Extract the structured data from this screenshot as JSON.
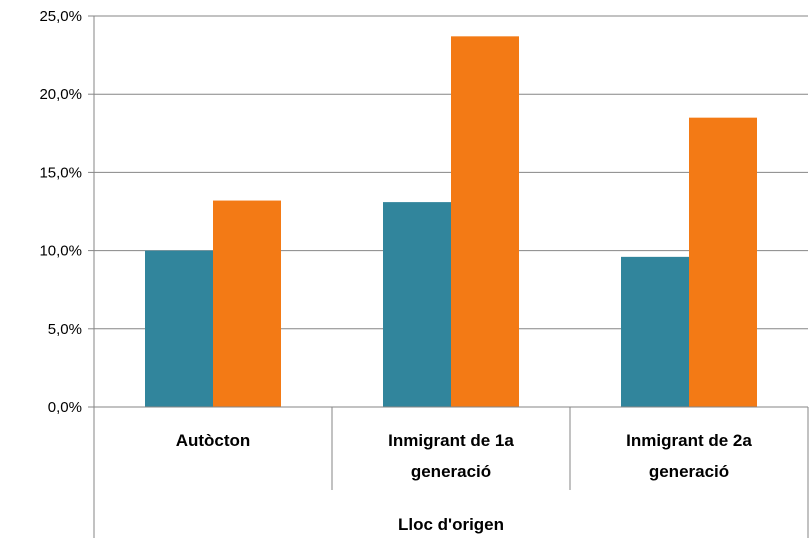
{
  "chart_data": {
    "type": "bar",
    "categories": [
      [
        "Autòcton"
      ],
      [
        "Inmigrant de 1a",
        "generació"
      ],
      [
        "Inmigrant de 2a",
        "generació"
      ]
    ],
    "series": [
      {
        "color": "#31859c",
        "values": [
          10.0,
          13.1,
          9.6
        ]
      },
      {
        "color": "#f37a15",
        "values": [
          13.2,
          23.7,
          18.5
        ]
      }
    ],
    "yticks": [
      "0,0%",
      "5,0%",
      "10,0%",
      "15,0%",
      "20,0%",
      "25,0%"
    ],
    "ylim": [
      0,
      25
    ],
    "xlabel": "Lloc d'origen",
    "ylabel": "",
    "title": "",
    "grid": true
  }
}
